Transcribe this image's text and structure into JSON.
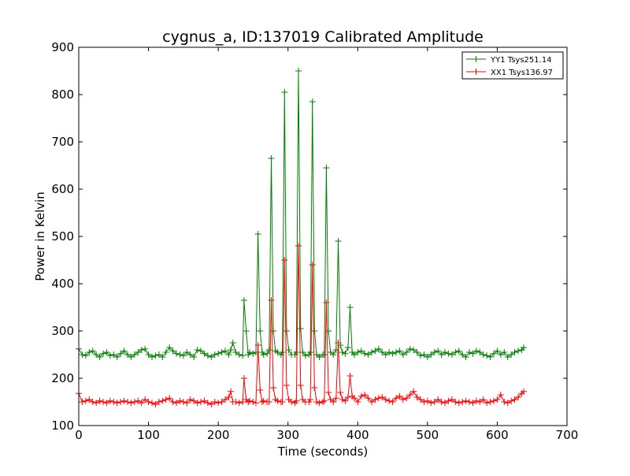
{
  "chart_data": {
    "type": "line",
    "title": "cygnus_a, ID:137019 Calibrated Amplitude",
    "xlabel": "Time (seconds)",
    "ylabel": "Power in Kelvin",
    "xlim": [
      0,
      700
    ],
    "ylim": [
      100,
      900
    ],
    "xticks": [
      0,
      100,
      200,
      300,
      400,
      500,
      600,
      700
    ],
    "yticks": [
      100,
      200,
      300,
      400,
      500,
      600,
      700,
      800,
      900
    ],
    "grid": false,
    "legend_position": "top-right",
    "marker": "plus",
    "series": [
      {
        "name": "YY1 Tsys251.14",
        "color": "#008000",
        "x": [
          0,
          5,
          10,
          15,
          20,
          25,
          30,
          35,
          40,
          45,
          50,
          55,
          60,
          65,
          70,
          75,
          80,
          85,
          90,
          95,
          100,
          105,
          110,
          115,
          120,
          125,
          130,
          135,
          140,
          145,
          150,
          155,
          160,
          165,
          170,
          175,
          180,
          185,
          190,
          195,
          200,
          205,
          210,
          215,
          218,
          221,
          225,
          230,
          235,
          237,
          240,
          243,
          245,
          250,
          254,
          257,
          260,
          263,
          265,
          270,
          273,
          276,
          279,
          282,
          285,
          290,
          292,
          295,
          298,
          301,
          305,
          310,
          312,
          315,
          318,
          321,
          325,
          330,
          332,
          335,
          338,
          341,
          345,
          350,
          352,
          355,
          358,
          361,
          365,
          369,
          372,
          375,
          378,
          382,
          386,
          389,
          392,
          395,
          400,
          405,
          410,
          415,
          420,
          425,
          430,
          435,
          440,
          445,
          450,
          455,
          460,
          465,
          470,
          475,
          480,
          485,
          490,
          495,
          500,
          505,
          510,
          515,
          520,
          525,
          530,
          535,
          540,
          545,
          550,
          555,
          560,
          565,
          570,
          575,
          580,
          585,
          590,
          595,
          600,
          605,
          610,
          615,
          620,
          625,
          630,
          635,
          638
        ],
        "values": [
          262,
          250,
          248,
          255,
          258,
          250,
          245,
          252,
          255,
          248,
          250,
          245,
          252,
          258,
          250,
          245,
          250,
          255,
          260,
          262,
          250,
          245,
          248,
          250,
          245,
          255,
          265,
          258,
          252,
          250,
          248,
          255,
          250,
          245,
          260,
          258,
          252,
          248,
          245,
          250,
          252,
          255,
          258,
          250,
          260,
          275,
          255,
          250,
          248,
          365,
          300,
          250,
          255,
          252,
          255,
          505,
          300,
          255,
          250,
          252,
          260,
          665,
          300,
          258,
          255,
          250,
          255,
          805,
          300,
          260,
          250,
          250,
          255,
          850,
          305,
          255,
          248,
          250,
          255,
          785,
          300,
          250,
          245,
          250,
          250,
          645,
          300,
          255,
          250,
          260,
          490,
          270,
          255,
          252,
          265,
          350,
          255,
          250,
          255,
          258,
          252,
          250,
          255,
          258,
          262,
          255,
          250,
          255,
          252,
          255,
          258,
          250,
          255,
          262,
          260,
          255,
          248,
          250,
          245,
          250,
          255,
          258,
          250,
          255,
          252,
          250,
          255,
          258,
          250,
          245,
          255,
          252,
          258,
          255,
          250,
          248,
          245,
          252,
          258,
          250,
          255,
          245,
          250,
          255,
          258,
          260,
          265
        ]
      },
      {
        "name": "XX1 Tsys136.97",
        "color": "#ff0000",
        "x": [
          0,
          5,
          10,
          15,
          20,
          25,
          30,
          35,
          40,
          45,
          50,
          55,
          60,
          65,
          70,
          75,
          80,
          85,
          90,
          95,
          100,
          105,
          110,
          115,
          120,
          125,
          130,
          135,
          140,
          145,
          150,
          155,
          160,
          165,
          170,
          175,
          180,
          185,
          190,
          195,
          200,
          205,
          210,
          215,
          218,
          221,
          225,
          230,
          235,
          237,
          240,
          243,
          245,
          250,
          254,
          257,
          260,
          263,
          265,
          270,
          273,
          276,
          279,
          282,
          285,
          290,
          292,
          295,
          298,
          301,
          305,
          310,
          312,
          315,
          318,
          321,
          325,
          330,
          332,
          335,
          338,
          341,
          345,
          350,
          352,
          355,
          358,
          361,
          365,
          369,
          372,
          375,
          378,
          382,
          386,
          389,
          392,
          395,
          400,
          405,
          410,
          415,
          420,
          425,
          430,
          435,
          440,
          445,
          450,
          455,
          460,
          465,
          470,
          475,
          480,
          485,
          490,
          495,
          500,
          505,
          510,
          515,
          520,
          525,
          530,
          535,
          540,
          545,
          550,
          555,
          560,
          565,
          570,
          575,
          580,
          585,
          590,
          595,
          600,
          605,
          610,
          615,
          620,
          625,
          630,
          635,
          638
        ],
        "values": [
          168,
          150,
          152,
          155,
          150,
          148,
          152,
          150,
          148,
          152,
          150,
          148,
          150,
          152,
          150,
          148,
          150,
          152,
          148,
          155,
          150,
          148,
          145,
          150,
          152,
          155,
          158,
          150,
          148,
          152,
          150,
          148,
          155,
          152,
          148,
          150,
          152,
          148,
          145,
          150,
          148,
          150,
          155,
          160,
          172,
          150,
          150,
          148,
          150,
          200,
          155,
          150,
          152,
          150,
          148,
          270,
          175,
          150,
          152,
          150,
          150,
          365,
          180,
          155,
          152,
          150,
          150,
          450,
          185,
          155,
          150,
          148,
          152,
          480,
          185,
          155,
          150,
          150,
          155,
          440,
          180,
          150,
          148,
          150,
          152,
          360,
          170,
          155,
          150,
          158,
          275,
          170,
          155,
          152,
          160,
          205,
          162,
          158,
          150,
          162,
          165,
          158,
          150,
          155,
          158,
          160,
          155,
          152,
          150,
          158,
          162,
          155,
          158,
          165,
          172,
          160,
          155,
          150,
          152,
          148,
          150,
          155,
          150,
          148,
          152,
          155,
          150,
          148,
          150,
          152,
          150,
          148,
          152,
          150,
          155,
          148,
          150,
          152,
          155,
          165,
          150,
          148,
          152,
          155,
          160,
          168,
          172
        ]
      }
    ]
  }
}
